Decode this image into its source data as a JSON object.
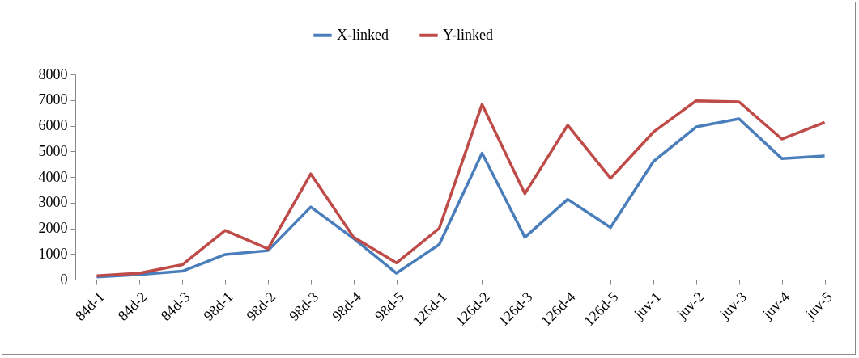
{
  "chart_data": {
    "type": "line",
    "categories": [
      "84d-1",
      "84d-2",
      "84d-3",
      "98d-1",
      "98d-2",
      "98d-3",
      "98d-4",
      "98d-5",
      "126d-1",
      "126d-2",
      "126d-3",
      "126d-4",
      "126d-5",
      "juv-1",
      "juv-2",
      "juv-3",
      "juv-4",
      "juv-5"
    ],
    "series": [
      {
        "name": "X-linked",
        "color": "#4a7ebb",
        "values": [
          100,
          200,
          330,
          980,
          1130,
          2830,
          1600,
          250,
          1370,
          4930,
          1650,
          3130,
          2030,
          4600,
          5950,
          6270,
          4720,
          4820
        ]
      },
      {
        "name": "Y-linked",
        "color": "#be4b48",
        "values": [
          150,
          250,
          580,
          1920,
          1200,
          4120,
          1650,
          650,
          2000,
          6830,
          3350,
          6020,
          3950,
          5750,
          6970,
          6930,
          5480,
          6130
        ]
      }
    ],
    "ylim": [
      0,
      8000
    ],
    "yticks": [
      0,
      1000,
      2000,
      3000,
      4000,
      5000,
      6000,
      7000,
      8000
    ],
    "grid": false,
    "legend": "top",
    "marker": "none",
    "line_style": "solid"
  }
}
